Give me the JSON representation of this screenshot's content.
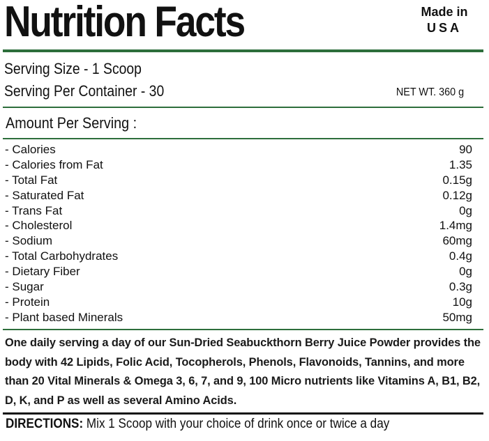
{
  "header": {
    "title": "Nutrition Facts",
    "origin_line1": "Made in",
    "origin_line2": "USA"
  },
  "serving": {
    "size": "Serving Size -  1 Scoop",
    "per_container": "Serving Per Container - 30",
    "net_weight": "NET WT. 360 g"
  },
  "amount_header": "Amount Per Serving :",
  "nutrients": [
    {
      "label": "- Calories",
      "value": "90"
    },
    {
      "label": "- Calories from Fat",
      "value": "1.35"
    },
    {
      "label": "- Total Fat",
      "value": "0.15g"
    },
    {
      "label": "- Saturated Fat",
      "value": "0.12g"
    },
    {
      "label": "- Trans Fat",
      "value": "0g"
    },
    {
      "label": "- Cholesterol",
      "value": "1.4mg"
    },
    {
      "label": "- Sodium",
      "value": "60mg"
    },
    {
      "label": "- Total Carbohydrates",
      "value": "0.4g"
    },
    {
      "label": "- Dietary Fiber",
      "value": "0g"
    },
    {
      "label": "- Sugar",
      "value": "0.3g"
    },
    {
      "label": "- Protein",
      "value": "10g"
    },
    {
      "label": "- Plant based Minerals",
      "value": "50mg"
    }
  ],
  "description": "One daily serving a day of our Sun-Dried Seabuckthorn Berry Juice Powder provides the body with 42 Lipids, Folic Acid, Tocopherols, Phenols, Flavonoids, Tannins, and more than 20 Vital Minerals &  Omega 3, 6, 7, and 9,  100 Micro nutrients like Vitamins A, B1, B2, D, K, and P as well as several Amino Acids.",
  "directions": {
    "label": "DIRECTIONS:",
    "text": " Mix 1 Scoop with your choice of drink  once or twice a day"
  },
  "colors": {
    "rule_green": "#2d6e3b",
    "text": "#111111",
    "background": "#ffffff"
  }
}
